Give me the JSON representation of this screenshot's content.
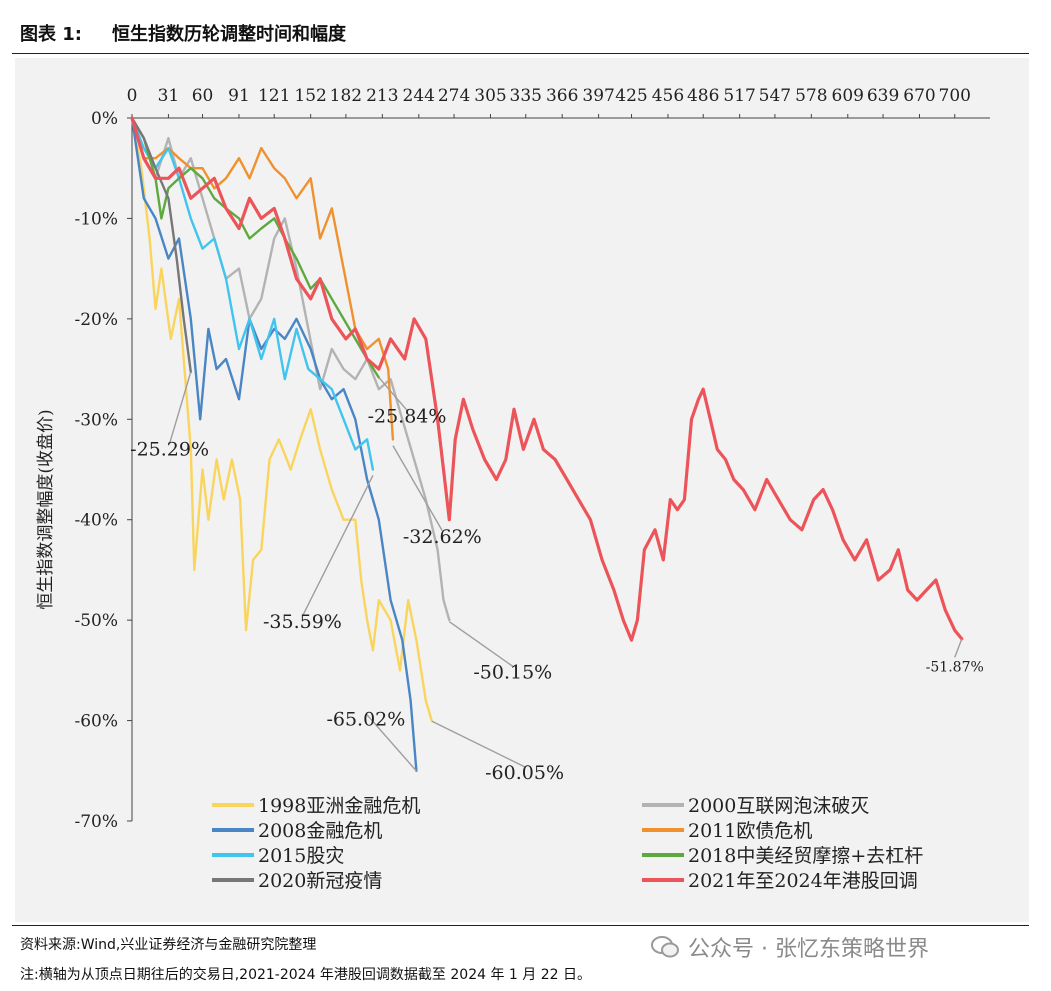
{
  "header": {
    "figure_number": "图表 1:",
    "figure_title": "恒生指数历轮调整时间和幅度"
  },
  "footer": {
    "source": "资料来源:Wind,兴业证券经济与金融研究院整理",
    "note": "注:横轴为从顶点日期往后的交易日,2021-2024 年港股回调数据截至 2024 年 1 月 22 日。",
    "watermark": "公众号 · 张忆东策略世界"
  },
  "chart_data": {
    "type": "line",
    "title": "",
    "ylabel": "恒生指数调整幅度(收盘价)",
    "xlabel": "",
    "x_axis_position": "top",
    "xticks": [
      0,
      31,
      60,
      91,
      121,
      152,
      182,
      213,
      244,
      274,
      305,
      335,
      366,
      397,
      425,
      456,
      486,
      517,
      547,
      578,
      609,
      639,
      670,
      700
    ],
    "xlim": [
      0,
      730
    ],
    "ylim": [
      -70,
      0
    ],
    "yticks": [
      0,
      -10,
      -20,
      -30,
      -40,
      -50,
      -60,
      -70
    ],
    "ytick_labels": [
      "0%",
      "-10%",
      "-20%",
      "-30%",
      "-40%",
      "-50%",
      "-60%",
      "-70%"
    ],
    "grid": false,
    "legend_position": "bottom",
    "series": [
      {
        "name": "1998亚洲金融危机",
        "color": "#f9d55e",
        "points": [
          [
            0,
            0
          ],
          [
            8,
            -5
          ],
          [
            15,
            -12
          ],
          [
            20,
            -19
          ],
          [
            25,
            -15
          ],
          [
            33,
            -22
          ],
          [
            40,
            -18
          ],
          [
            50,
            -33
          ],
          [
            53,
            -45
          ],
          [
            60,
            -35
          ],
          [
            65,
            -40
          ],
          [
            72,
            -34
          ],
          [
            78,
            -38
          ],
          [
            85,
            -34
          ],
          [
            92,
            -38
          ],
          [
            97,
            -51
          ],
          [
            103,
            -44
          ],
          [
            110,
            -43
          ],
          [
            117,
            -34
          ],
          [
            125,
            -32
          ],
          [
            135,
            -35
          ],
          [
            143,
            -32
          ],
          [
            152,
            -29
          ],
          [
            160,
            -33
          ],
          [
            170,
            -37
          ],
          [
            180,
            -40
          ],
          [
            190,
            -40
          ],
          [
            195,
            -46
          ],
          [
            200,
            -50
          ],
          [
            205,
            -53
          ],
          [
            210,
            -48
          ],
          [
            220,
            -50
          ],
          [
            228,
            -55
          ],
          [
            235,
            -48
          ],
          [
            242,
            -52
          ],
          [
            250,
            -58
          ],
          [
            255,
            -60
          ]
        ]
      },
      {
        "name": "2000互联网泡沫破灭",
        "color": "#b3b3b3",
        "points": [
          [
            0,
            0
          ],
          [
            10,
            -4
          ],
          [
            20,
            -6
          ],
          [
            31,
            -2
          ],
          [
            40,
            -6
          ],
          [
            50,
            -4
          ],
          [
            60,
            -8
          ],
          [
            70,
            -12
          ],
          [
            80,
            -16
          ],
          [
            91,
            -15
          ],
          [
            100,
            -20
          ],
          [
            110,
            -18
          ],
          [
            121,
            -12
          ],
          [
            130,
            -10
          ],
          [
            140,
            -15
          ],
          [
            150,
            -21
          ],
          [
            160,
            -27
          ],
          [
            170,
            -23
          ],
          [
            180,
            -25
          ],
          [
            190,
            -26
          ],
          [
            200,
            -24
          ],
          [
            210,
            -27
          ],
          [
            220,
            -26
          ],
          [
            230,
            -30
          ],
          [
            240,
            -34
          ],
          [
            250,
            -38
          ],
          [
            260,
            -43
          ],
          [
            265,
            -48
          ],
          [
            270,
            -50
          ]
        ]
      },
      {
        "name": "2008金融危机",
        "color": "#4a86c5",
        "points": [
          [
            0,
            0
          ],
          [
            10,
            -8
          ],
          [
            20,
            -10
          ],
          [
            31,
            -14
          ],
          [
            40,
            -12
          ],
          [
            50,
            -20
          ],
          [
            58,
            -30
          ],
          [
            65,
            -21
          ],
          [
            72,
            -25
          ],
          [
            80,
            -24
          ],
          [
            91,
            -28
          ],
          [
            100,
            -20
          ],
          [
            110,
            -23
          ],
          [
            121,
            -21
          ],
          [
            130,
            -22
          ],
          [
            140,
            -20
          ],
          [
            152,
            -23
          ],
          [
            160,
            -26
          ],
          [
            170,
            -28
          ],
          [
            180,
            -27
          ],
          [
            190,
            -30
          ],
          [
            200,
            -36
          ],
          [
            210,
            -40
          ],
          [
            220,
            -48
          ],
          [
            230,
            -52
          ],
          [
            237,
            -58
          ],
          [
            242,
            -65
          ]
        ]
      },
      {
        "name": "2011欧债危机",
        "color": "#f0912e",
        "points": [
          [
            0,
            0
          ],
          [
            10,
            -4
          ],
          [
            20,
            -4
          ],
          [
            31,
            -3
          ],
          [
            40,
            -4
          ],
          [
            50,
            -5
          ],
          [
            60,
            -5
          ],
          [
            70,
            -7
          ],
          [
            80,
            -6
          ],
          [
            91,
            -4
          ],
          [
            100,
            -6
          ],
          [
            110,
            -3
          ],
          [
            121,
            -5
          ],
          [
            130,
            -6
          ],
          [
            140,
            -8
          ],
          [
            152,
            -6
          ],
          [
            160,
            -12
          ],
          [
            170,
            -9
          ],
          [
            180,
            -15
          ],
          [
            190,
            -21
          ],
          [
            200,
            -23
          ],
          [
            210,
            -22
          ],
          [
            218,
            -25
          ],
          [
            222,
            -32
          ]
        ]
      },
      {
        "name": "2015股灾",
        "color": "#41c4ee",
        "points": [
          [
            0,
            0
          ],
          [
            10,
            -3
          ],
          [
            20,
            -5
          ],
          [
            31,
            -3
          ],
          [
            40,
            -6
          ],
          [
            50,
            -10
          ],
          [
            60,
            -13
          ],
          [
            70,
            -12
          ],
          [
            80,
            -16
          ],
          [
            91,
            -23
          ],
          [
            100,
            -20
          ],
          [
            110,
            -24
          ],
          [
            121,
            -20
          ],
          [
            130,
            -26
          ],
          [
            140,
            -21
          ],
          [
            150,
            -25
          ],
          [
            160,
            -26
          ],
          [
            170,
            -27
          ],
          [
            180,
            -30
          ],
          [
            190,
            -33
          ],
          [
            200,
            -32
          ],
          [
            205,
            -35
          ]
        ]
      },
      {
        "name": "2018中美经贸摩擦+去杠杆",
        "color": "#5ea93f",
        "points": [
          [
            0,
            0
          ],
          [
            10,
            -2
          ],
          [
            20,
            -6
          ],
          [
            25,
            -10
          ],
          [
            31,
            -7
          ],
          [
            40,
            -6
          ],
          [
            50,
            -5
          ],
          [
            60,
            -6
          ],
          [
            70,
            -8
          ],
          [
            80,
            -9
          ],
          [
            91,
            -10
          ],
          [
            100,
            -12
          ],
          [
            110,
            -11
          ],
          [
            121,
            -10
          ],
          [
            130,
            -12
          ],
          [
            140,
            -14
          ],
          [
            152,
            -17
          ],
          [
            160,
            -16
          ],
          [
            170,
            -18
          ],
          [
            180,
            -20
          ],
          [
            190,
            -22
          ],
          [
            200,
            -24
          ],
          [
            210,
            -25.84
          ]
        ]
      },
      {
        "name": "2020新冠疫情",
        "color": "#777777",
        "points": [
          [
            0,
            0
          ],
          [
            10,
            -2
          ],
          [
            20,
            -5
          ],
          [
            31,
            -8
          ],
          [
            38,
            -14
          ],
          [
            44,
            -20
          ],
          [
            50,
            -25.29
          ]
        ]
      },
      {
        "name": "2021年至2024年港股回调",
        "color": "#ec5459",
        "points": [
          [
            0,
            0
          ],
          [
            10,
            -4
          ],
          [
            20,
            -6
          ],
          [
            31,
            -6
          ],
          [
            40,
            -5
          ],
          [
            50,
            -8
          ],
          [
            60,
            -7
          ],
          [
            70,
            -6
          ],
          [
            80,
            -9
          ],
          [
            91,
            -11
          ],
          [
            100,
            -8
          ],
          [
            110,
            -10
          ],
          [
            121,
            -9
          ],
          [
            130,
            -12
          ],
          [
            140,
            -16
          ],
          [
            152,
            -18
          ],
          [
            160,
            -16
          ],
          [
            170,
            -20
          ],
          [
            182,
            -22
          ],
          [
            190,
            -21
          ],
          [
            200,
            -24
          ],
          [
            210,
            -25
          ],
          [
            220,
            -22
          ],
          [
            232,
            -24
          ],
          [
            240,
            -20
          ],
          [
            250,
            -22
          ],
          [
            255,
            -26
          ],
          [
            260,
            -30
          ],
          [
            265,
            -35
          ],
          [
            270,
            -40
          ],
          [
            275,
            -32
          ],
          [
            282,
            -28
          ],
          [
            290,
            -31
          ],
          [
            300,
            -34
          ],
          [
            310,
            -36
          ],
          [
            318,
            -34
          ],
          [
            325,
            -29
          ],
          [
            333,
            -33
          ],
          [
            342,
            -30
          ],
          [
            350,
            -33
          ],
          [
            360,
            -34
          ],
          [
            370,
            -36
          ],
          [
            380,
            -38
          ],
          [
            390,
            -40
          ],
          [
            400,
            -44
          ],
          [
            410,
            -47
          ],
          [
            418,
            -50
          ],
          [
            425,
            -52
          ],
          [
            430,
            -50
          ],
          [
            436,
            -43
          ],
          [
            445,
            -41
          ],
          [
            452,
            -44
          ],
          [
            458,
            -38
          ],
          [
            464,
            -39
          ],
          [
            470,
            -38
          ],
          [
            476,
            -30
          ],
          [
            482,
            -28
          ],
          [
            486,
            -27
          ],
          [
            492,
            -30
          ],
          [
            498,
            -33
          ],
          [
            505,
            -34
          ],
          [
            512,
            -36
          ],
          [
            520,
            -37
          ],
          [
            530,
            -39
          ],
          [
            540,
            -36
          ],
          [
            550,
            -38
          ],
          [
            560,
            -40
          ],
          [
            570,
            -41
          ],
          [
            580,
            -38
          ],
          [
            588,
            -37
          ],
          [
            596,
            -39
          ],
          [
            605,
            -42
          ],
          [
            615,
            -44
          ],
          [
            625,
            -42
          ],
          [
            635,
            -46
          ],
          [
            645,
            -45
          ],
          [
            652,
            -43
          ],
          [
            660,
            -47
          ],
          [
            668,
            -48
          ],
          [
            676,
            -47
          ],
          [
            684,
            -46
          ],
          [
            692,
            -49
          ],
          [
            700,
            -51
          ],
          [
            706,
            -51.87
          ]
        ]
      }
    ],
    "annotations": [
      {
        "text": "-25.29%",
        "x": 50,
        "y": -25.29,
        "label_x": 32,
        "label_y": -33
      },
      {
        "text": "-25.84%",
        "x": 210,
        "y": -25.84,
        "label_x": 234,
        "label_y": -29.7
      },
      {
        "text": "-32.62%",
        "x": 222,
        "y": -32.62,
        "label_x": 264,
        "label_y": -41.7
      },
      {
        "text": "-35.59%",
        "x": 205,
        "y": -35.59,
        "label_x": 145,
        "label_y": -50.2
      },
      {
        "text": "-50.15%",
        "x": 270,
        "y": -50.15,
        "label_x": 324,
        "label_y": -55.2
      },
      {
        "text": "-65.02%",
        "x": 242,
        "y": -65.02,
        "label_x": 199,
        "label_y": -59.9
      },
      {
        "text": "-60.05%",
        "x": 255,
        "y": -60.05,
        "label_x": 334,
        "label_y": -65.2
      },
      {
        "text": "-51.87%",
        "x": 706,
        "y": -51.87,
        "label_x": 700,
        "label_y": -54.5
      }
    ]
  }
}
